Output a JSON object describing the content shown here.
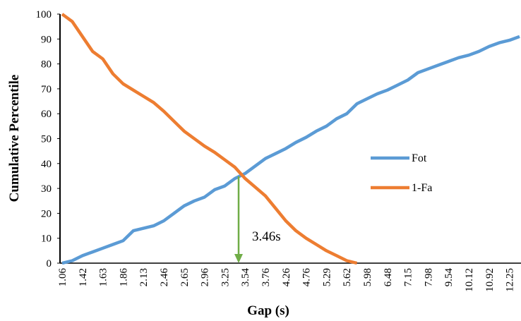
{
  "chart_data": {
    "type": "line",
    "x_label": "Gap (s)",
    "y_label": "Cumulative Percentile",
    "categories": [
      "1.06",
      null,
      "1.42",
      null,
      "1.63",
      null,
      "1.86",
      null,
      "2.13",
      null,
      "2.46",
      null,
      "2.65",
      null,
      "2.96",
      null,
      "3.25",
      null,
      "3.54",
      null,
      "3.76",
      null,
      "4.26",
      null,
      "4.76",
      null,
      "5.29",
      null,
      "5.62",
      null,
      "5.98",
      null,
      "6.48",
      null,
      "7.15",
      null,
      "7.98",
      null,
      "9.54",
      null,
      "10.12",
      null,
      "10.92",
      null,
      "12.25",
      null
    ],
    "series": [
      {
        "name": "Fot",
        "color": "#5b9bd5",
        "values": [
          0,
          1,
          3,
          4.5,
          6,
          7.5,
          9,
          13,
          14,
          15,
          17,
          20,
          23,
          25,
          26.5,
          29.5,
          31,
          34,
          36,
          39,
          42,
          44,
          46,
          48.5,
          50.5,
          53,
          55,
          58,
          60,
          64,
          66,
          68,
          69.5,
          71.5,
          73.5,
          76.5,
          78,
          79.5,
          81,
          82.5,
          83.5,
          85,
          87,
          88.5,
          89.5,
          91
        ]
      },
      {
        "name": "1-Fa",
        "color": "#ed7d31",
        "values": [
          100,
          97,
          91,
          85,
          82,
          76,
          72,
          69.5,
          67,
          64.5,
          61,
          57,
          53,
          50,
          47,
          44.5,
          41.5,
          38.5,
          34,
          30.5,
          27,
          22,
          17,
          13,
          10,
          7.5,
          5,
          3,
          1,
          0,
          null,
          null,
          null,
          null,
          null,
          null,
          null,
          null,
          null,
          null,
          null,
          null,
          null,
          null,
          null,
          null
        ]
      }
    ],
    "annotation": {
      "text": "3.46s",
      "color": "#70ad47"
    },
    "ylim": [
      0,
      100
    ],
    "yticks": [
      0,
      10,
      20,
      30,
      40,
      50,
      60,
      70,
      80,
      90,
      100
    ],
    "grid": false,
    "legend": "right"
  }
}
